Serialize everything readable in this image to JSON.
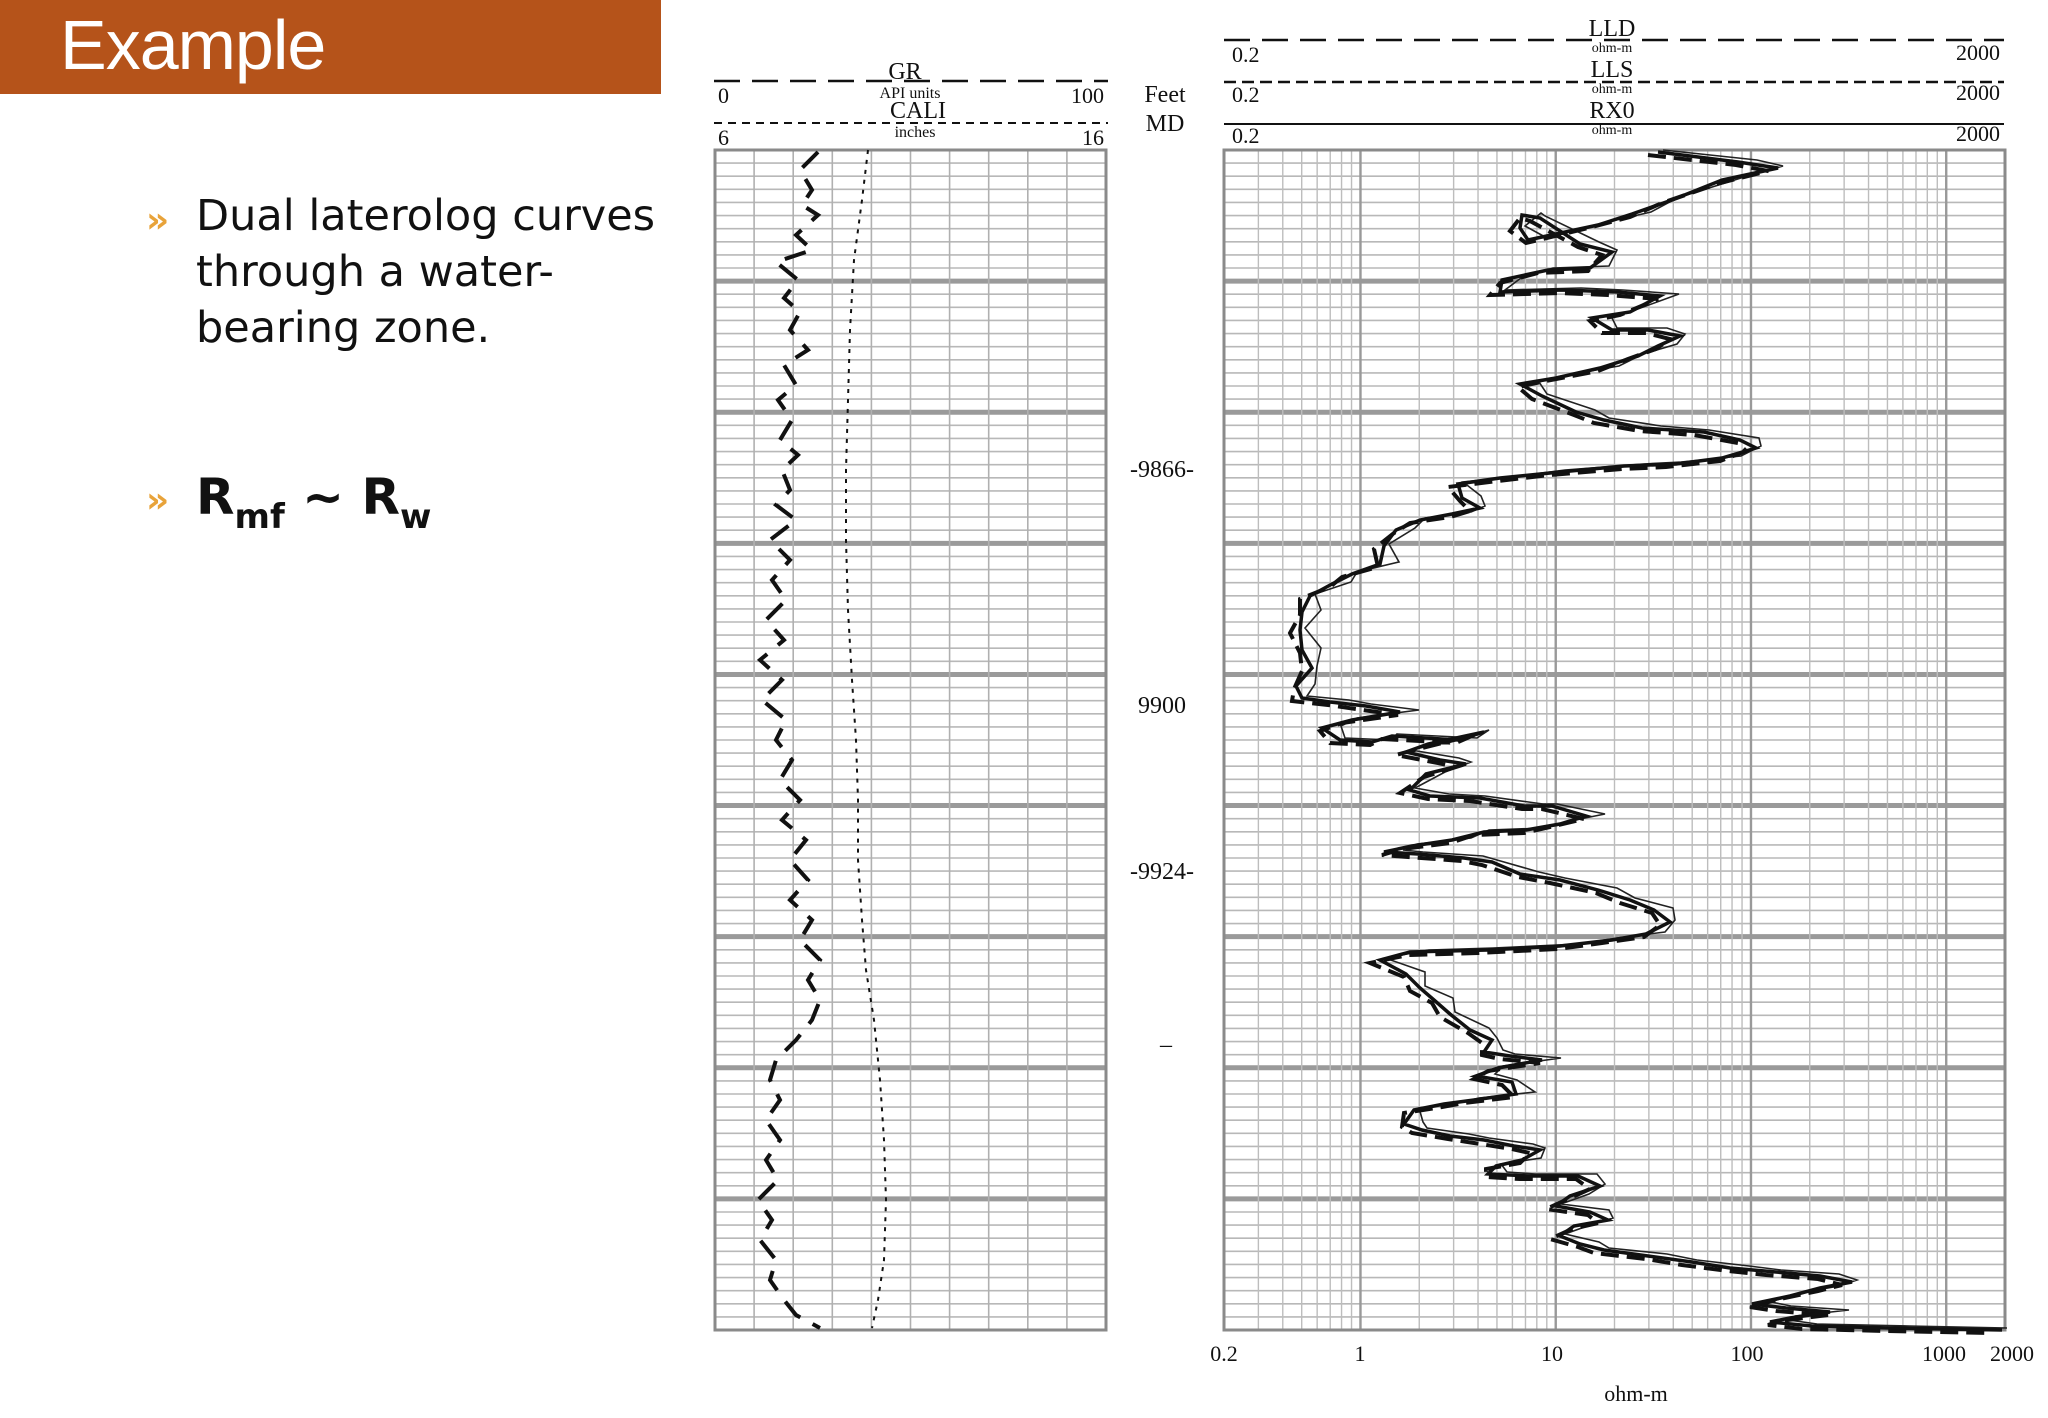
{
  "slide": {
    "title": "Example",
    "accent_color": "#B5531A",
    "bullet_color": "#E8A33A",
    "bullets": [
      {
        "icon": "double-chevron-icon",
        "text": "Dual laterolog curves through a water-bearing zone."
      },
      {
        "icon": "double-chevron-icon",
        "R1": "R",
        "sub1": "mf",
        "mid": " ~ ",
        "R2": "R",
        "sub2": "w"
      }
    ]
  },
  "log": {
    "track1": {
      "curves": [
        {
          "name": "GR",
          "unit": "API units",
          "min": "0",
          "max": "100"
        },
        {
          "name": "CALI",
          "unit": "inches",
          "min": "6",
          "max": "16"
        }
      ]
    },
    "depth_track": {
      "header": [
        "Feet",
        "MD"
      ],
      "labels": [
        "-9866-",
        "9900",
        "-9924-",
        "–"
      ]
    },
    "track2": {
      "scale": "logarithmic",
      "curves": [
        {
          "name": "LLD",
          "unit": "ohm-m",
          "min": "0.2",
          "max": "2000"
        },
        {
          "name": "LLS",
          "unit": "ohm-m",
          "min": "0.2",
          "max": "2000"
        },
        {
          "name": "RX0",
          "unit": "ohm-m",
          "min": "0.2",
          "max": "2000"
        }
      ],
      "axis_ticks": [
        "0.2",
        "1",
        "10",
        "100",
        "1000",
        "2000"
      ],
      "axis_label": "ohm-m"
    }
  }
}
